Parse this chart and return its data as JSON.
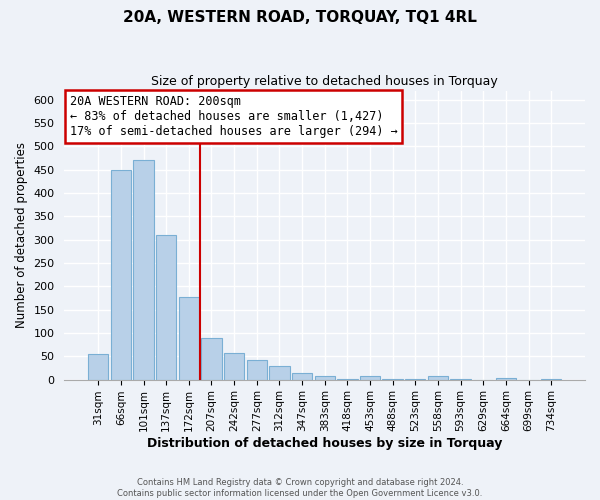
{
  "title": "20A, WESTERN ROAD, TORQUAY, TQ1 4RL",
  "subtitle": "Size of property relative to detached houses in Torquay",
  "xlabel": "Distribution of detached houses by size in Torquay",
  "ylabel": "Number of detached properties",
  "bar_labels": [
    "31sqm",
    "66sqm",
    "101sqm",
    "137sqm",
    "172sqm",
    "207sqm",
    "242sqm",
    "277sqm",
    "312sqm",
    "347sqm",
    "383sqm",
    "418sqm",
    "453sqm",
    "488sqm",
    "523sqm",
    "558sqm",
    "593sqm",
    "629sqm",
    "664sqm",
    "699sqm",
    "734sqm"
  ],
  "bar_values": [
    55,
    450,
    470,
    310,
    178,
    90,
    58,
    42,
    30,
    15,
    7,
    1,
    8,
    1,
    1,
    8,
    1,
    0,
    3,
    0,
    2
  ],
  "bar_color": "#b8d0e8",
  "bar_edge_color": "#7aafd4",
  "vline_color": "#cc0000",
  "annotation_title": "20A WESTERN ROAD: 200sqm",
  "annotation_line1": "← 83% of detached houses are smaller (1,427)",
  "annotation_line2": "17% of semi-detached houses are larger (294) →",
  "annotation_box_color": "#ffffff",
  "annotation_box_edge": "#cc0000",
  "ylim": [
    0,
    620
  ],
  "yticks": [
    0,
    50,
    100,
    150,
    200,
    250,
    300,
    350,
    400,
    450,
    500,
    550,
    600
  ],
  "footer1": "Contains HM Land Registry data © Crown copyright and database right 2024.",
  "footer2": "Contains public sector information licensed under the Open Government Licence v3.0.",
  "bg_color": "#eef2f8",
  "grid_color": "#ffffff"
}
